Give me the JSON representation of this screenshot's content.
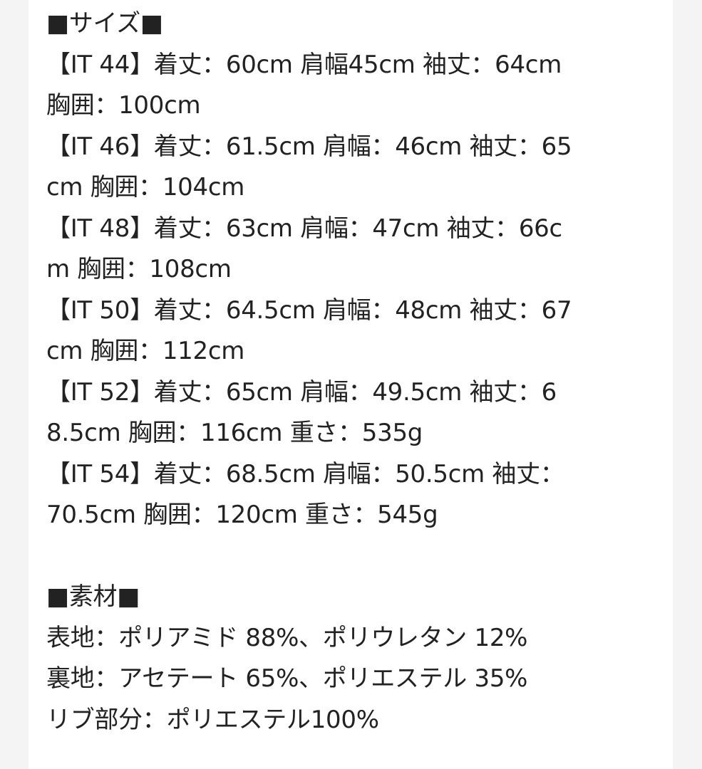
{
  "size_section": {
    "heading": "■サイズ■",
    "lines": [
      "【IT 44】着丈：60cm 肩幅45cm 袖丈：64cm",
      "胸囲：100cm",
      "【IT 46】着丈：61.5cm 肩幅：46cm 袖丈：65",
      "cm 胸囲：104cm",
      "【IT 48】着丈：63cm 肩幅：47cm 袖丈：66c",
      "m 胸囲：108cm",
      "【IT 50】着丈：64.5cm 肩幅：48cm 袖丈：67",
      "cm 胸囲：112cm",
      "【IT 52】着丈：65cm 肩幅：49.5cm 袖丈：6",
      "8.5cm 胸囲：116cm 重さ：535g",
      "【IT 54】着丈：68.5cm 肩幅：50.5cm 袖丈：",
      "70.5cm 胸囲：120cm 重さ：545g"
    ]
  },
  "material_section": {
    "heading": "■素材■",
    "lines": [
      "表地：ポリアミド 88%、ポリウレタン 12%",
      "裏地：アセテート 65%、ポリエステル 35%",
      "リブ部分：ポリエステル100%"
    ]
  }
}
